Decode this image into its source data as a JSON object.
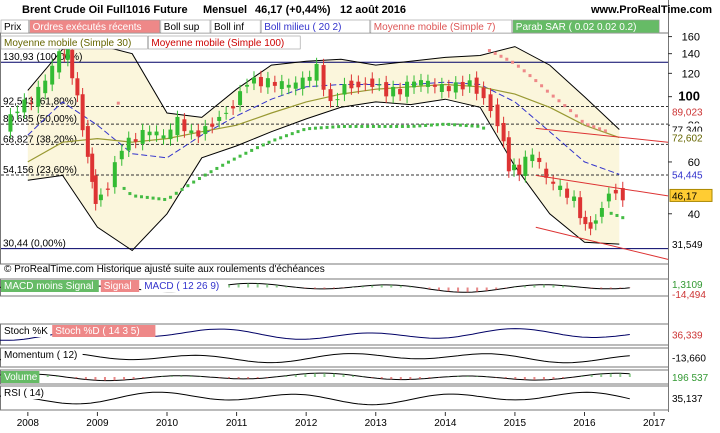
{
  "header": {
    "title": "Brent Crude Oil Full1016 Future",
    "period": "Mensuel",
    "last": "46,17 (+0,44%)",
    "date": "12 août 2016",
    "brand": "www.ProRealTime.com"
  },
  "legend": [
    {
      "label": "Prix",
      "color": "#000000",
      "bg": "#ffffff"
    },
    {
      "label": "Ordres exécutés récents",
      "color": "#ffffff",
      "bg": "#ee8888"
    },
    {
      "label": "Boll sup",
      "color": "#000000",
      "bg": "#ffffff"
    },
    {
      "label": "Boll inf",
      "color": "#000000",
      "bg": "#ffffff"
    },
    {
      "label": "Boll milieu ( 20 2)",
      "color": "#3333cc",
      "bg": "#ffffff"
    },
    {
      "label": "Moyenne mobile (Simple 7)",
      "color": "#dd5555",
      "bg": "#ffffff"
    },
    {
      "label": "Parab SAR ( 0.02 0.02 0.2)",
      "color": "#ffffff",
      "bg": "#66bb66"
    }
  ],
  "legend2": [
    {
      "label": "Moyenne mobile (Simple 30)",
      "color": "#666600",
      "bg": "#ffffff"
    },
    {
      "label": "Moyenne mobile (Simple 100)",
      "color": "#cc0000",
      "bg": "#ffffff"
    }
  ],
  "copyright": "© ProRealTime.com Historique ajusté suite aux roulements d'échéances",
  "fib_levels": [
    {
      "label": "130,93 (100,00%)",
      "value": 130.93
    },
    {
      "label": "92,543 (61,80%)",
      "value": 92.543
    },
    {
      "label": "80,685 (50,00%)",
      "value": 80.685
    },
    {
      "label": "68,827 (38,20%)",
      "value": 68.827
    },
    {
      "label": "54,156 (23,60%)",
      "value": 54.156
    },
    {
      "label": "30,44 (0,00%)",
      "value": 30.44
    }
  ],
  "price_tags": [
    {
      "label": "89,023",
      "value": 89.023,
      "color": "#cc3333",
      "bg": "#ffffff"
    },
    {
      "label": "77,340",
      "value": 77.34,
      "color": "#000000",
      "bg": "#ffffff"
    },
    {
      "label": "72,602",
      "value": 72.602,
      "color": "#666600",
      "bg": "#ffffff"
    },
    {
      "label": "54,445",
      "value": 54.445,
      "color": "#3333cc",
      "bg": "#ffffff"
    },
    {
      "label": "46,17",
      "value": 46.17,
      "color": "#000000",
      "bg": "#ffcc33"
    },
    {
      "label": "31,549",
      "value": 31.549,
      "color": "#000000",
      "bg": "#ffffff"
    }
  ],
  "indicators": [
    {
      "name": "macd",
      "labels": [
        {
          "text": "MACD moins Signal",
          "color": "#ffffff",
          "bg": "#66bb66"
        },
        {
          "text": "Signal",
          "color": "#ffffff",
          "bg": "#ee8888"
        },
        {
          "text": "MACD ( 12 26 9)",
          "color": "#3333cc",
          "bg": "#ffffff"
        }
      ],
      "tags": [
        {
          "text": "1,3109",
          "color": "#339933"
        },
        {
          "text": "-14,494",
          "color": "#cc3333"
        }
      ]
    },
    {
      "name": "stochastic",
      "labels": [
        {
          "text": "Stoch %K",
          "color": "#000000",
          "bg": "#ffffff"
        },
        {
          "text": "Stoch %D ( 14 3 5)",
          "color": "#ffffff",
          "bg": "#ee8888"
        }
      ],
      "tags": [
        {
          "text": "36,339",
          "color": "#cc3333"
        }
      ]
    },
    {
      "name": "momentum",
      "labels": [
        {
          "text": "Momentum ( 12)",
          "color": "#000000",
          "bg": "#ffffff"
        }
      ],
      "tags": [
        {
          "text": "-13,660",
          "color": "#000000"
        }
      ]
    },
    {
      "name": "volume",
      "labels": [
        {
          "text": "Volume",
          "color": "#ffffff",
          "bg": "#66bb66"
        }
      ],
      "tags": [
        {
          "text": "196 537",
          "color": "#339933"
        }
      ]
    },
    {
      "name": "rsi",
      "labels": [
        {
          "text": "RSI ( 14)",
          "color": "#000000",
          "bg": "#ffffff"
        }
      ],
      "tags": [
        {
          "text": "35,137",
          "color": "#000000"
        }
      ]
    }
  ],
  "colors": {
    "up": "#33bb33",
    "down": "#dd3333",
    "band_fill": "#fbf6dc",
    "sar": "#44bb44"
  },
  "chart_data": {
    "type": "line",
    "title": "Brent Crude Oil Full1016 Future",
    "xlabel": "",
    "ylabel": "",
    "x_ticks": [
      "2008",
      "2009",
      "2010",
      "2011",
      "2012",
      "2013",
      "2014",
      "2015",
      "2016",
      "2017"
    ],
    "xlim": [
      2007.6,
      2017.2
    ],
    "y_ticks": [
      40,
      60,
      80,
      100,
      120,
      140,
      160
    ],
    "ylim": [
      27,
      162
    ],
    "scale": "log",
    "series": [
      {
        "name": "Prix",
        "x": [
          2007.7,
          2007.9,
          2008.1,
          2008.3,
          2008.5,
          2008.6,
          2008.75,
          2008.9,
          2009.0,
          2009.2,
          2009.4,
          2009.6,
          2009.8,
          2010.0,
          2010.2,
          2010.4,
          2010.6,
          2010.8,
          2011.0,
          2011.2,
          2011.4,
          2011.6,
          2011.8,
          2012.0,
          2012.2,
          2012.4,
          2012.6,
          2012.8,
          2013.0,
          2013.2,
          2013.4,
          2013.6,
          2013.8,
          2014.0,
          2014.2,
          2014.4,
          2014.6,
          2014.8,
          2014.95,
          2015.1,
          2015.3,
          2015.5,
          2015.7,
          2015.9,
          2016.05,
          2016.2,
          2016.4,
          2016.6
        ],
        "y": [
          78,
          92,
          96,
          112,
          138,
          140,
          98,
          62,
          44,
          50,
          68,
          72,
          76,
          72,
          82,
          74,
          78,
          86,
          94,
          114,
          112,
          110,
          108,
          112,
          124,
          94,
          110,
          110,
          112,
          104,
          104,
          112,
          110,
          106,
          108,
          112,
          100,
          82,
          58,
          56,
          64,
          52,
          48,
          44,
          36,
          38,
          48,
          46.17
        ]
      },
      {
        "name": "Boll sup",
        "x": [
          2008.0,
          2008.5,
          2009.0,
          2009.5,
          2010.0,
          2010.5,
          2011.0,
          2011.5,
          2012.0,
          2012.5,
          2013.0,
          2013.5,
          2014.0,
          2014.5,
          2015.0,
          2015.5,
          2016.0,
          2016.5
        ],
        "y": [
          105,
          145,
          150,
          140,
          88,
          85,
          106,
          128,
          132,
          134,
          128,
          132,
          136,
          138,
          148,
          128,
          100,
          77.34
        ]
      },
      {
        "name": "Boll inf",
        "x": [
          2008.0,
          2008.5,
          2009.0,
          2009.5,
          2010.0,
          2010.5,
          2011.0,
          2011.5,
          2012.0,
          2012.5,
          2013.0,
          2013.5,
          2014.0,
          2014.5,
          2015.0,
          2015.5,
          2016.0,
          2016.5
        ],
        "y": [
          52,
          54,
          36,
          30,
          40,
          62,
          68,
          76,
          84,
          92,
          96,
          94,
          98,
          92,
          58,
          40,
          32,
          31.549
        ]
      },
      {
        "name": "Boll milieu ( 20 2)",
        "x": [
          2008.0,
          2008.5,
          2009.0,
          2009.5,
          2010.0,
          2010.5,
          2011.0,
          2011.5,
          2012.0,
          2012.5,
          2013.0,
          2013.5,
          2014.0,
          2014.5,
          2015.0,
          2015.5,
          2016.0,
          2016.5
        ],
        "y": [
          74,
          96,
          80,
          64,
          62,
          74,
          86,
          98,
          108,
          110,
          110,
          110,
          112,
          110,
          96,
          76,
          60,
          54.445
        ]
      },
      {
        "name": "Moyenne mobile (Simple 30)",
        "x": [
          2008.0,
          2008.5,
          2009.0,
          2009.5,
          2010.0,
          2010.5,
          2011.0,
          2011.5,
          2012.0,
          2012.5,
          2013.0,
          2013.5,
          2014.0,
          2014.5,
          2015.0,
          2015.5,
          2016.0,
          2016.5
        ],
        "y": [
          60,
          70,
          72,
          70,
          72,
          76,
          80,
          88,
          96,
          102,
          106,
          108,
          110,
          108,
          102,
          92,
          80,
          72.602
        ]
      }
    ]
  }
}
